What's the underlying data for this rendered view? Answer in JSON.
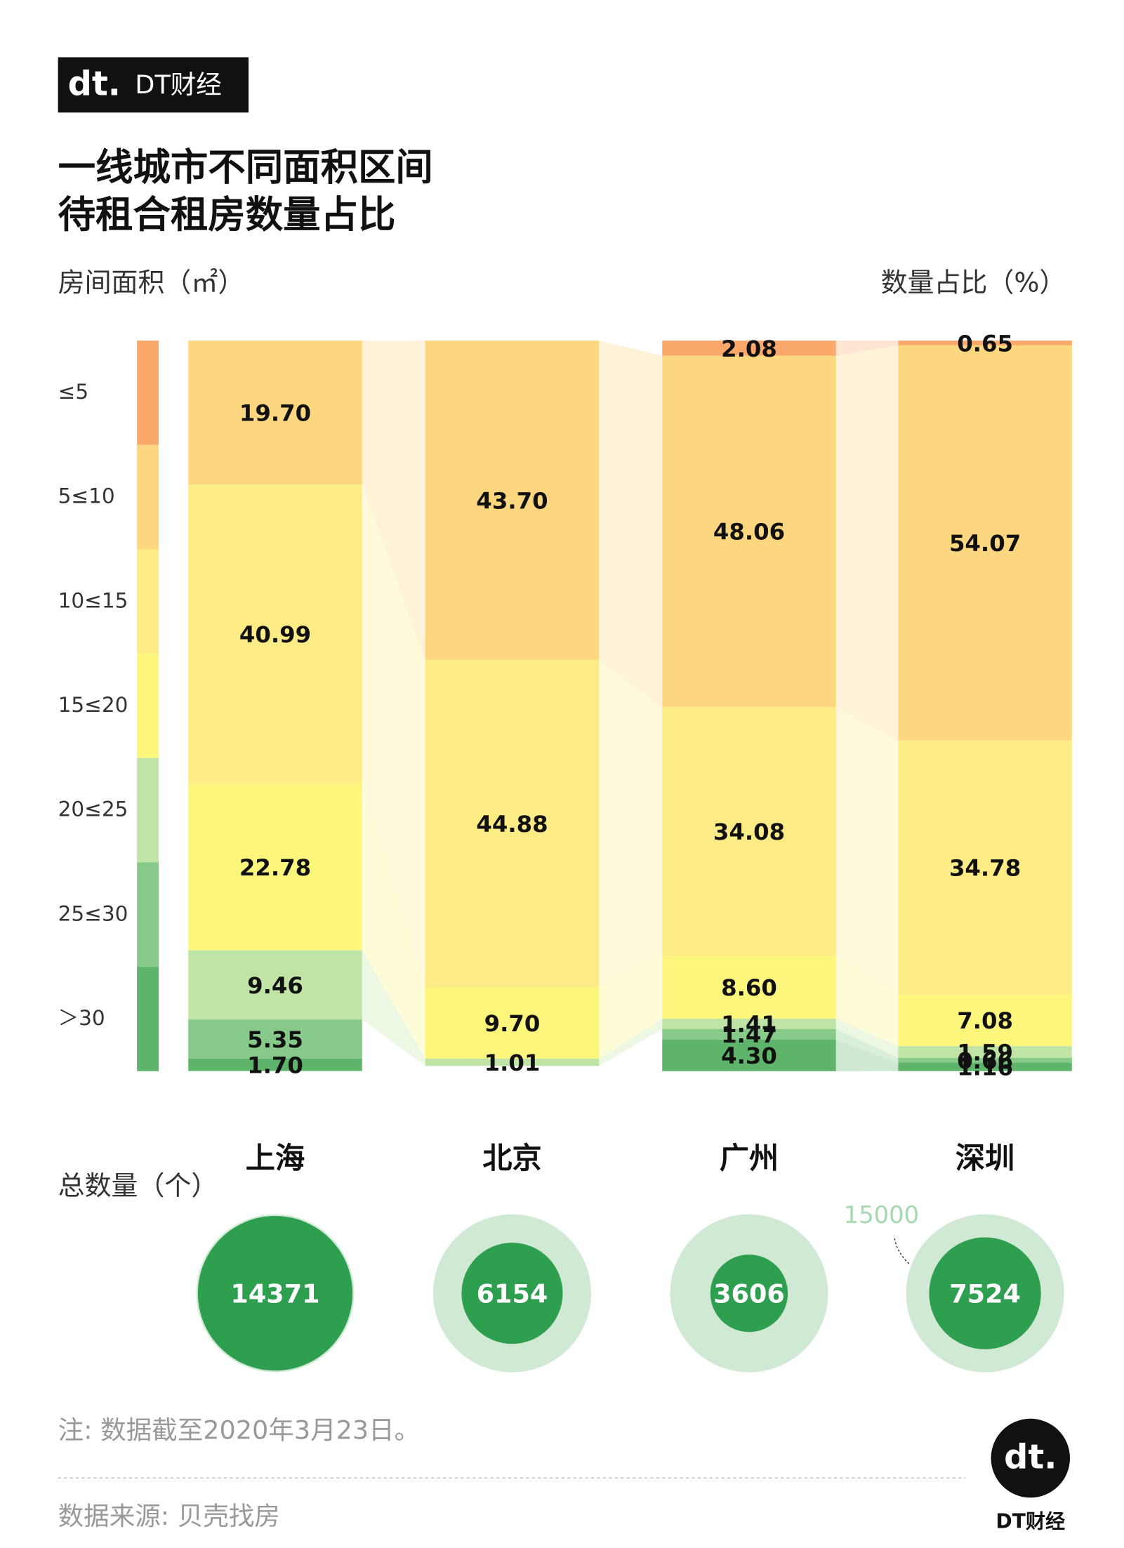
{
  "chart_data": {
    "type": "stacked_bar",
    "logo": "DT财经",
    "title_lines": [
      "一线城市不同面积区间",
      "待租合租房数量占比"
    ],
    "left_label": "房间面积（㎡）",
    "right_label": "数量占比（%）",
    "categories": [
      "上海",
      "北京",
      "广州",
      "深圳"
    ],
    "ylim": [
      0,
      100
    ],
    "series": [
      {
        "name": "≤5",
        "color": "#fba96a",
        "values": [
          null,
          null,
          2.08,
          0.65
        ]
      },
      {
        "name": "5≤10",
        "color": "#fdd680",
        "values": [
          19.7,
          43.7,
          48.06,
          54.07
        ],
        "value_labels": [
          "19.70",
          "43.70",
          "48.06",
          "54.07"
        ]
      },
      {
        "name": "10≤15",
        "color": "#fdeb85",
        "values": [
          40.99,
          44.88,
          34.08,
          34.78
        ]
      },
      {
        "name": "15≤20",
        "color": "#fcf67d",
        "values": [
          22.78,
          9.7,
          8.6,
          7.08
        ],
        "value_labels": [
          "22.78",
          "9.70",
          "8.60",
          "7.08"
        ]
      },
      {
        "name": "20≤25",
        "color": "#c0e3a6",
        "values": [
          9.46,
          1.01,
          1.41,
          1.59
        ]
      },
      {
        "name": "25≤30",
        "color": "#86c988",
        "values": [
          5.35,
          null,
          1.47,
          0.66
        ]
      },
      {
        "name": "＞30",
        "color": "#5eb46a",
        "values": [
          1.7,
          null,
          4.3,
          1.16
        ],
        "value_labels": [
          "1.70",
          null,
          "4.30",
          "1.16"
        ]
      }
    ],
    "totals": {
      "label": "总数量（个）",
      "values": [
        14371,
        6154,
        3606,
        7524
      ],
      "reference": 15000,
      "color": "#2e9e4f",
      "reference_color": "#d0e9d4"
    },
    "note": "注: 数据截至2020年3月23日。",
    "source": "数据来源: 贝壳找房"
  }
}
